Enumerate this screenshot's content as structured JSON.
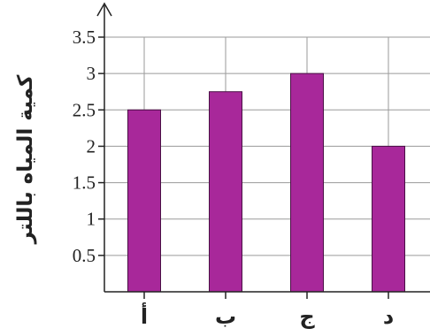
{
  "chart_data": {
    "type": "bar",
    "title": "",
    "xlabel": "",
    "ylabel": "كمية المياه باللتر",
    "categories": [
      "أ",
      "ب",
      "ج",
      "د"
    ],
    "values": [
      2.5,
      2.75,
      3,
      2
    ],
    "ylim": [
      0,
      3.5
    ],
    "yticks": [
      0.5,
      1,
      1.5,
      2,
      2.5,
      3,
      3.5
    ],
    "ytick_labels": [
      "0.5",
      "1",
      "1.5",
      "2",
      "2.5",
      "3",
      "3.5"
    ],
    "grid": true,
    "legend": "none",
    "colors": {
      "bar": "#a8289a",
      "bar_edge": "#4a1046",
      "grid": "#9a9a9a",
      "axis": "#222222"
    }
  }
}
